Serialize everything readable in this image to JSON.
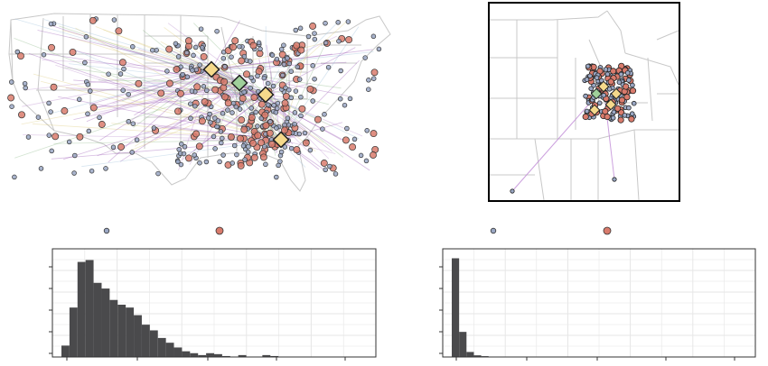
{
  "colors": {
    "small_point": "#9aa7c4",
    "large_point": "#d97b6c",
    "hub_marker": "#f5d98b",
    "hub_marker_alt": "#9fcf9a",
    "flow_line": "#8e44ad",
    "state_border": "#c8c8c8",
    "bar_fill": "#4a4a4c",
    "grid": "#e6e6e6"
  },
  "legend_left": {
    "items": [
      {
        "symbol": "small-point"
      },
      {
        "symbol": "large-point"
      }
    ]
  },
  "legend_right": {
    "items": [
      {
        "symbol": "small-point"
      },
      {
        "symbol": "large-point"
      }
    ]
  },
  "chart_data": [
    {
      "type": "bar",
      "panel": "left-histogram",
      "categories": [
        "b1",
        "b2",
        "b3",
        "b4",
        "b5",
        "b6",
        "b7",
        "b8",
        "b9",
        "b10",
        "b11",
        "b12",
        "b13",
        "b14",
        "b15",
        "b16",
        "b17",
        "b18",
        "b19",
        "b20",
        "b21",
        "b22",
        "b23",
        "b24",
        "b25",
        "b26",
        "b27",
        "b28",
        "b29",
        "b30",
        "b31",
        "b32",
        "b33",
        "b34",
        "b35",
        "b36",
        "b37",
        "b38"
      ],
      "values": [
        12,
        52,
        100,
        102,
        78,
        72,
        60,
        55,
        52,
        44,
        34,
        28,
        20,
        15,
        10,
        6,
        4,
        2,
        4,
        3,
        1,
        0,
        2,
        0,
        0,
        2,
        1,
        0,
        0,
        0,
        0,
        0,
        0,
        0,
        0,
        0,
        0,
        0
      ],
      "ylim": [
        0,
        110
      ],
      "grid": true
    },
    {
      "type": "bar",
      "panel": "right-histogram",
      "categories": [
        "b1",
        "b2",
        "b3",
        "b4",
        "b5",
        "b6",
        "b7",
        "b8",
        "b9",
        "b10",
        "b11",
        "b12",
        "b13",
        "b14",
        "b15",
        "b16",
        "b17",
        "b18",
        "b19",
        "b20",
        "b21",
        "b22",
        "b23",
        "b24",
        "b25",
        "b26",
        "b27",
        "b28",
        "b29",
        "b30",
        "b31",
        "b32",
        "b33",
        "b34",
        "b35",
        "b36",
        "b37",
        "b38",
        "b39",
        "b40"
      ],
      "values": [
        118,
        30,
        6,
        2,
        1,
        0,
        0,
        0,
        0,
        0,
        0,
        0,
        0,
        0,
        0,
        0,
        0,
        0,
        0,
        0,
        0,
        0,
        0,
        0,
        0,
        0,
        0,
        0,
        0,
        0,
        0,
        0,
        0,
        0,
        0,
        0,
        0,
        0,
        0,
        0
      ],
      "ylim": [
        0,
        125
      ],
      "grid": true
    }
  ]
}
